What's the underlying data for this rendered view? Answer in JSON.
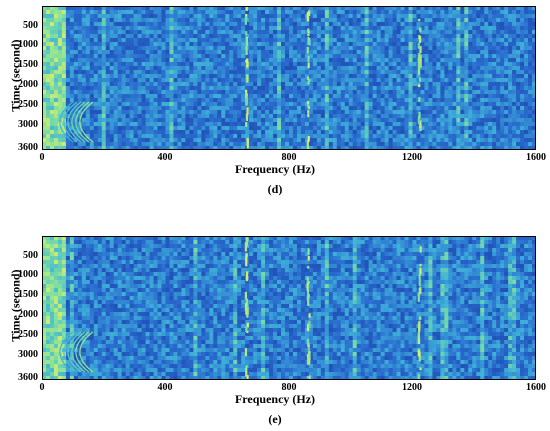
{
  "chart_data": [
    {
      "type": "heatmap",
      "caption": "(d)",
      "xlabel": "Frequency (Hz)",
      "ylabel": "Time (second)",
      "xlim": [
        0,
        1600
      ],
      "ylim": [
        0,
        3600
      ],
      "x_ticks": [
        "0",
        "400",
        "800",
        "1200",
        "1600"
      ],
      "y_ticks": [
        "500",
        "1000",
        "1500",
        "2000",
        "2500",
        "3000",
        "3600"
      ],
      "y_inverted": true,
      "colormap": [
        "#0b1a6e",
        "#1b3fa8",
        "#2a6fd0",
        "#3fb0d8",
        "#7fe0a0",
        "#e8f060"
      ],
      "features": {
        "vertical_lines_hz": [
          660,
          860,
          1220
        ],
        "curve_start_hz": 100,
        "curve_time_range_s": [
          2400,
          3400
        ]
      }
    },
    {
      "type": "heatmap",
      "caption": "(e)",
      "xlabel": "Frequency (Hz)",
      "ylabel": "Time (second)",
      "xlim": [
        0,
        1600
      ],
      "ylim": [
        0,
        3600
      ],
      "x_ticks": [
        "0",
        "400",
        "800",
        "1200",
        "1600"
      ],
      "y_ticks": [
        "500",
        "1000",
        "1500",
        "2000",
        "2500",
        "3000",
        "3600"
      ],
      "y_inverted": true,
      "colormap": [
        "#0b1a6e",
        "#1b3fa8",
        "#2a6fd0",
        "#3fb0d8",
        "#7fe0a0",
        "#e8f060"
      ],
      "features": {
        "vertical_lines_hz": [
          660,
          860,
          1220
        ],
        "curve_start_hz": 100,
        "curve_time_range_s": [
          2400,
          3400
        ]
      }
    }
  ]
}
